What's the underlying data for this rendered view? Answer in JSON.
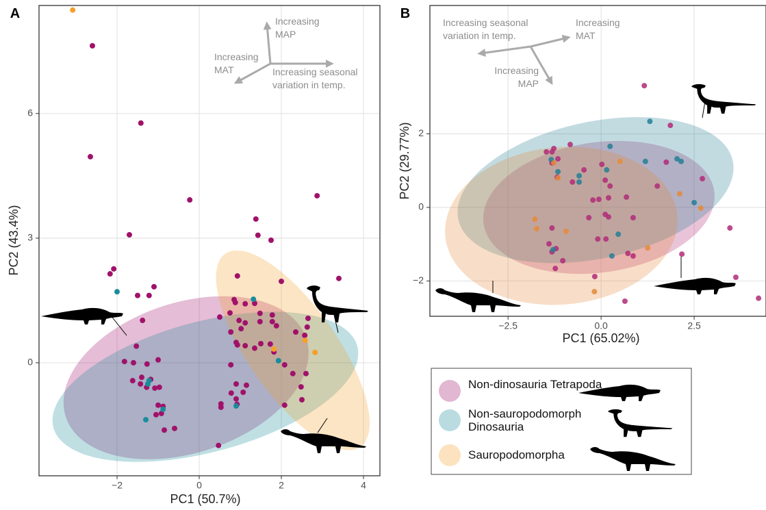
{
  "chart_data": [
    {
      "type": "scatter",
      "panel_label": "A",
      "x_label": "PC1 (50.7%)",
      "y_label": "PC2 (43.4%)",
      "xlim": [
        -3.9,
        4.4
      ],
      "ylim": [
        -2.72,
        8.6
      ],
      "xticks": [
        {
          "value": -2,
          "label": "−2"
        },
        0,
        2,
        4
      ],
      "yticks": [
        0,
        3,
        6
      ],
      "grid": true,
      "annotations": [
        {
          "lines": [
            "Increasing",
            "MAP"
          ]
        },
        {
          "lines": [
            "Increasing",
            "MAT"
          ]
        },
        {
          "lines": [
            "Increasing seasonal",
            "variation in temp."
          ]
        }
      ],
      "series": [
        {
          "name": "Non-dinosauria Tetrapoda",
          "color": "#a0126a",
          "x": [
            -2.6,
            -1.42,
            -2.65,
            -0.23,
            2.87,
            1.38,
            1.43,
            1.75,
            -1.7,
            -2.08,
            -2.17,
            0.93,
            2.0,
            3.4,
            -1.1,
            -1.5,
            -1.22,
            0.85,
            0.88,
            -1.38,
            0.5,
            1.12,
            1.35,
            1.48,
            1.78,
            1.78,
            0.75,
            -1.53,
            0.77,
            0.97,
            1.02,
            -1.82,
            -1.6,
            -1.0,
            -1.27,
            -1.4,
            -1.62,
            -1.18,
            -0.97,
            -1.08,
            -1.28,
            -1.43,
            -1.0,
            -0.88,
            -0.92,
            -1.05,
            -0.85,
            -0.6,
            0.47,
            0.53,
            0.53,
            0.78,
            0.9,
            1.07,
            0.9,
            1.15,
            0.77,
            0.93,
            1.12,
            1.12,
            0.9,
            1.48,
            1.5,
            1.73,
            1.88,
            1.82,
            2.08,
            2.28,
            2.6,
            2.48,
            2.5,
            2.65,
            2.63,
            2.57,
            2.35,
            2.08,
            0.92,
            1.35
          ],
          "y": [
            7.63,
            5.77,
            4.96,
            3.92,
            4.02,
            3.46,
            3.07,
            2.95,
            3.08,
            2.26,
            2.14,
            2.09,
            1.96,
            2.03,
            1.83,
            1.62,
            1.62,
            1.52,
            1.45,
            1.02,
            1.1,
            1.42,
            1.43,
            1.19,
            1.15,
            0.99,
            1.2,
            0.4,
            0.74,
            1.02,
            0.82,
            0.03,
            0,
            0.07,
            -0.03,
            -0.35,
            -0.43,
            -0.4,
            -0.59,
            -0.61,
            -0.59,
            -0.51,
            -1.02,
            -1.05,
            -1.22,
            -1.25,
            -1.62,
            -1.58,
            -1.99,
            -1.07,
            -0.99,
            -0.73,
            -0.87,
            -0.71,
            -0.51,
            -0.54,
            -0.05,
            0.43,
            0.41,
            0.96,
            0.49,
            0.99,
            0.46,
            0.45,
            0.89,
            0.26,
            -0.05,
            -0.26,
            -0.26,
            -0.58,
            -0.89,
            1.07,
            0.86,
            0.66,
            0.74,
            -1.02,
            -1.0,
            0.35
          ],
          "ellipse": {
            "center": [
              -0.32,
              -0.36
            ],
            "radii": [
              3.08,
              1.81
            ],
            "angle": 18
          }
        },
        {
          "name": "Non-sauropodomorph Dinosauria",
          "color": "#1a8c9c",
          "x": [
            -2.0,
            1.32,
            1.93,
            -1.3,
            -0.88,
            -1.25,
            -1.22,
            0.9
          ],
          "y": [
            1.71,
            1.53,
            0.05,
            -1.37,
            -1.12,
            -0.51,
            -0.43,
            -1.04
          ],
          "ellipse": {
            "center": [
              0.15,
              -0.58
            ],
            "radii": [
              3.83,
              1.57
            ],
            "angle": 15
          }
        },
        {
          "name": "Sauropodomorpha",
          "color": "#f5a02b",
          "x": [
            -3.08,
            2.82,
            2.58,
            1.82
          ],
          "y": [
            8.49,
            0.25,
            0.54,
            0.33
          ],
          "ellipse": {
            "center": [
              2.28,
              0.3
            ],
            "radii": [
              2.87,
              1.07
            ],
            "angle": -55
          }
        }
      ]
    },
    {
      "type": "scatter",
      "panel_label": "B",
      "x_label": "PC1 (65.02%)",
      "y_label": "PC2 (29.77%)",
      "xlim": [
        -4.6,
        4.43
      ],
      "ylim": [
        -2.96,
        5.49
      ],
      "xticks": [
        {
          "value": -2.5,
          "label": "−2.5"
        },
        {
          "value": 0,
          "label": "0.0"
        },
        2.5
      ],
      "yticks": [
        {
          "value": -2,
          "label": "−2"
        },
        0,
        2
      ],
      "grid": true,
      "annotations": [
        {
          "lines": [
            "Increasing seasonal",
            "variation in temp."
          ]
        },
        {
          "lines": [
            "Increasing",
            "MAT"
          ]
        },
        {
          "lines": [
            "Increasing",
            "MAP"
          ]
        }
      ],
      "series": [
        {
          "color": "#b02a78",
          "x": [
            1.16,
            1.86,
            -0.83,
            -1.32,
            -1.27,
            -1.47,
            -1.16,
            -1.32,
            -0.46,
            0.02,
            1.75,
            -1.18,
            -0.77,
            0.11,
            0.24,
            1.51,
            0.2,
            -0.06,
            -0.22,
            0.68,
            0.11,
            0.2,
            -0.33,
            0.86,
            -1.32,
            -0.09,
            0.13,
            -1.4,
            -1.21,
            -1.32,
            -1.03,
            -1.23,
            0.72,
            0.86,
            2.17,
            3.46,
            3.62,
            4.23,
            0.64,
            -0.17,
            2.72
          ],
          "y": [
            3.31,
            2.23,
            1.71,
            1.51,
            1.6,
            1.51,
            1.32,
            1.21,
            1.02,
            1.17,
            1.23,
            0.82,
            0.69,
            0.74,
            0.58,
            0.58,
            0.26,
            0.22,
            0.2,
            0.28,
            -0.19,
            -0.26,
            -0.28,
            -0.28,
            -0.56,
            -0.86,
            -0.86,
            -0.99,
            -1.12,
            -1.21,
            -1.45,
            -1.66,
            -1.25,
            -1.32,
            -1.27,
            -0.56,
            -1.9,
            -2.47,
            -2.55,
            -1.88,
            0.78
          ],
          "ellipse": {
            "center": [
              -0.06,
              0
            ],
            "radii": [
              3.13,
              1.77
            ],
            "angle": 8
          }
        },
        {
          "color": "#237f94",
          "x": [
            1.31,
            0.24,
            1.19,
            2.04,
            2.15,
            0.15,
            -1.34,
            -1.16,
            -0.59,
            2.5,
            0.46,
            -1.29,
            0.29,
            -0.59
          ],
          "y": [
            2.34,
            1.66,
            1.25,
            1.32,
            1.25,
            1.02,
            1.3,
            0.97,
            0.86,
            0.13,
            -0.73,
            -1.15,
            -1.32,
            0.69
          ],
          "ellipse": {
            "center": [
              -0.15,
              0.47
            ],
            "radii": [
              3.77,
              1.86
            ],
            "angle": 12
          }
        },
        {
          "color": "#e58a3a",
          "x": [
            0.51,
            -1.27,
            -1.16,
            2.11,
            2.68,
            -1.78,
            -1.73,
            -0.94,
            1.25,
            -0.18
          ],
          "y": [
            1.25,
            1.21,
            0.8,
            0.37,
            -0.02,
            -0.32,
            -0.58,
            -0.65,
            -1.1,
            -2.29
          ],
          "ellipse": {
            "center": [
              -1.07,
              -0.5
            ],
            "radii": [
              3.13,
              2.14
            ],
            "angle": 5
          }
        }
      ]
    }
  ]
}
